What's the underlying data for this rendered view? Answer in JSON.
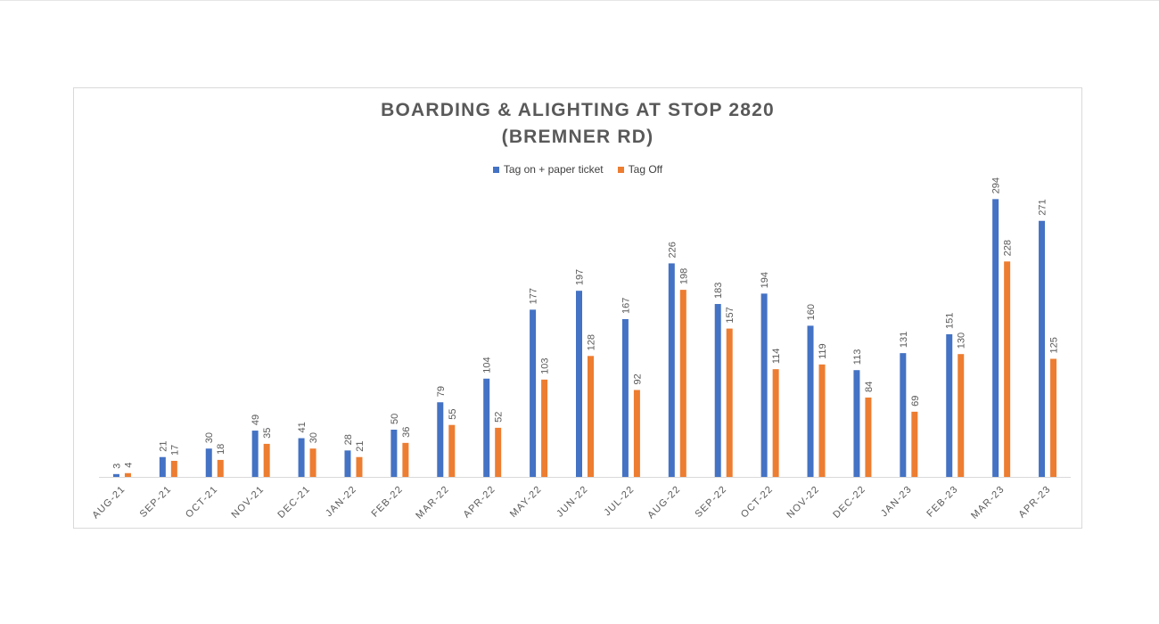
{
  "colors": {
    "series_a": "#4472c4",
    "series_b": "#ed7d31",
    "axis": "#d9d9d9",
    "text": "#595959"
  },
  "chart_data": {
    "type": "bar",
    "title_line1": "BOARDING & ALIGHTING AT STOP 2820",
    "title_line2": "(BREMNER RD)",
    "xlabel": "",
    "ylabel": "",
    "grid": false,
    "legend_position": "top",
    "ylim": [
      0,
      300
    ],
    "categories": [
      "AUG-21",
      "SEP-21",
      "OCT-21",
      "NOV-21",
      "DEC-21",
      "JAN-22",
      "FEB-22",
      "MAR-22",
      "APR-22",
      "MAY-22",
      "JUN-22",
      "JUL-22",
      "AUG-22",
      "SEP-22",
      "OCT-22",
      "NOV-22",
      "DEC-22",
      "JAN-23",
      "FEB-23",
      "MAR-23",
      "APR-23"
    ],
    "series": [
      {
        "name": "Tag on + paper ticket",
        "color": "#4472c4",
        "values": [
          3,
          21,
          30,
          49,
          41,
          28,
          50,
          79,
          104,
          177,
          197,
          167,
          226,
          183,
          194,
          160,
          113,
          131,
          151,
          294,
          271
        ]
      },
      {
        "name": "Tag Off",
        "color": "#ed7d31",
        "values": [
          4,
          17,
          18,
          35,
          30,
          21,
          36,
          55,
          52,
          103,
          128,
          92,
          198,
          157,
          114,
          119,
          84,
          69,
          130,
          228,
          125
        ]
      }
    ]
  }
}
